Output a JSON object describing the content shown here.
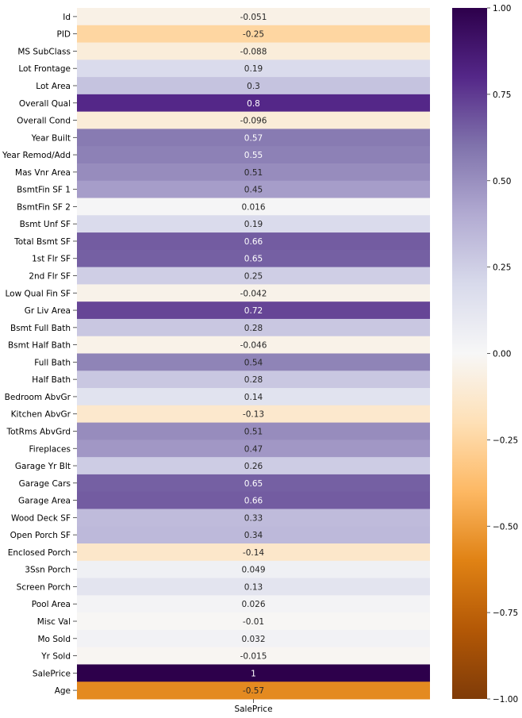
{
  "chart_data": {
    "type": "heatmap",
    "title": "",
    "xlabel": "",
    "ylabel": "",
    "columns": [
      "SalePrice"
    ],
    "rows": [
      "Id",
      "PID",
      "MS SubClass",
      "Lot Frontage",
      "Lot Area",
      "Overall Qual",
      "Overall Cond",
      "Year Built",
      "Year Remod/Add",
      "Mas Vnr Area",
      "BsmtFin SF 1",
      "BsmtFin SF 2",
      "Bsmt Unf SF",
      "Total Bsmt SF",
      "1st Flr SF",
      "2nd Flr SF",
      "Low Qual Fin SF",
      "Gr Liv Area",
      "Bsmt Full Bath",
      "Bsmt Half Bath",
      "Full Bath",
      "Half Bath",
      "Bedroom AbvGr",
      "Kitchen AbvGr",
      "TotRms AbvGrd",
      "Fireplaces",
      "Garage Yr Blt",
      "Garage Cars",
      "Garage Area",
      "Wood Deck SF",
      "Open Porch SF",
      "Enclosed Porch",
      "3Ssn Porch",
      "Screen Porch",
      "Pool Area",
      "Misc Val",
      "Mo Sold",
      "Yr Sold",
      "SalePrice",
      "Age"
    ],
    "values": [
      -0.051,
      -0.25,
      -0.088,
      0.19,
      0.3,
      0.8,
      -0.096,
      0.57,
      0.55,
      0.51,
      0.45,
      0.016,
      0.19,
      0.66,
      0.65,
      0.25,
      -0.042,
      0.72,
      0.28,
      -0.046,
      0.54,
      0.28,
      0.14,
      -0.13,
      0.51,
      0.47,
      0.26,
      0.65,
      0.66,
      0.33,
      0.34,
      -0.14,
      0.049,
      0.13,
      0.026,
      -0.01,
      0.032,
      -0.015,
      1,
      -0.57
    ],
    "value_labels": [
      "-0.051",
      "-0.25",
      "-0.088",
      "0.19",
      "0.3",
      "0.8",
      "-0.096",
      "0.57",
      "0.55",
      "0.51",
      "0.45",
      "0.016",
      "0.19",
      "0.66",
      "0.65",
      "0.25",
      "-0.042",
      "0.72",
      "0.28",
      "-0.046",
      "0.54",
      "0.28",
      "0.14",
      "-0.13",
      "0.51",
      "0.47",
      "0.26",
      "0.65",
      "0.66",
      "0.33",
      "0.34",
      "-0.14",
      "0.049",
      "0.13",
      "0.026",
      "-0.01",
      "0.032",
      "-0.015",
      "1",
      "-0.57"
    ],
    "colorbar": {
      "colormap": "PuOr",
      "range": [
        -1,
        1
      ],
      "ticks": [
        1.0,
        0.75,
        0.5,
        0.25,
        0.0,
        -0.25,
        -0.5,
        -0.75,
        -1.0
      ],
      "tick_labels": [
        "1.00",
        "0.75",
        "0.50",
        "0.25",
        "0.00",
        "−0.25",
        "−0.50",
        "−0.75",
        "−1.00"
      ]
    }
  }
}
